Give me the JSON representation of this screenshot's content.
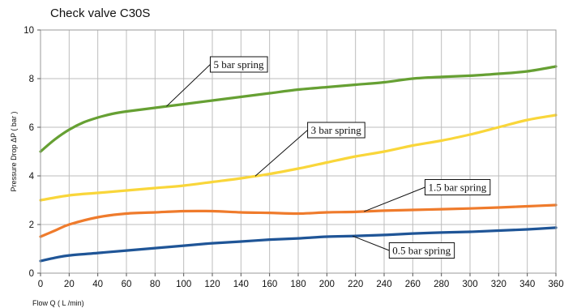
{
  "chart_data": {
    "type": "line",
    "title": "Check valve C30S",
    "xlabel": "Flow Q ( L /min)",
    "ylabel": "Pressure Drop ΔP ( bar )",
    "xlim": [
      0,
      360
    ],
    "ylim": [
      0,
      10
    ],
    "x_ticks": [
      0,
      20,
      40,
      60,
      80,
      100,
      120,
      140,
      160,
      180,
      200,
      220,
      240,
      260,
      280,
      300,
      320,
      340,
      360
    ],
    "y_ticks": [
      0,
      2,
      4,
      6,
      8,
      10
    ],
    "grid": true,
    "legend": "callouts",
    "series": [
      {
        "name": "5 bar spring",
        "color": "#66a033",
        "label_at": [
          118,
          8.6
        ],
        "anchor_x": 88,
        "points": [
          [
            0,
            5.0
          ],
          [
            10,
            5.5
          ],
          [
            20,
            5.9
          ],
          [
            30,
            6.2
          ],
          [
            40,
            6.4
          ],
          [
            50,
            6.55
          ],
          [
            60,
            6.65
          ],
          [
            80,
            6.8
          ],
          [
            100,
            6.95
          ],
          [
            120,
            7.1
          ],
          [
            140,
            7.25
          ],
          [
            160,
            7.4
          ],
          [
            180,
            7.55
          ],
          [
            200,
            7.65
          ],
          [
            220,
            7.75
          ],
          [
            240,
            7.85
          ],
          [
            260,
            8.0
          ],
          [
            280,
            8.07
          ],
          [
            300,
            8.12
          ],
          [
            320,
            8.2
          ],
          [
            340,
            8.3
          ],
          [
            360,
            8.5
          ]
        ]
      },
      {
        "name": "3 bar spring",
        "color": "#f9d63a",
        "label_at": [
          186,
          5.9
        ],
        "anchor_x": 150,
        "points": [
          [
            0,
            3.0
          ],
          [
            20,
            3.2
          ],
          [
            40,
            3.3
          ],
          [
            60,
            3.4
          ],
          [
            80,
            3.5
          ],
          [
            100,
            3.6
          ],
          [
            120,
            3.75
          ],
          [
            140,
            3.9
          ],
          [
            160,
            4.08
          ],
          [
            180,
            4.3
          ],
          [
            200,
            4.55
          ],
          [
            220,
            4.8
          ],
          [
            240,
            5.0
          ],
          [
            260,
            5.25
          ],
          [
            280,
            5.45
          ],
          [
            300,
            5.7
          ],
          [
            320,
            6.0
          ],
          [
            340,
            6.3
          ],
          [
            360,
            6.5
          ]
        ]
      },
      {
        "name": "1.5 bar spring",
        "color": "#ef7b2c",
        "label_at": [
          268,
          3.55
        ],
        "anchor_x": 226,
        "points": [
          [
            0,
            1.5
          ],
          [
            10,
            1.75
          ],
          [
            20,
            2.0
          ],
          [
            40,
            2.3
          ],
          [
            60,
            2.45
          ],
          [
            80,
            2.5
          ],
          [
            100,
            2.55
          ],
          [
            120,
            2.55
          ],
          [
            140,
            2.5
          ],
          [
            160,
            2.48
          ],
          [
            180,
            2.45
          ],
          [
            200,
            2.5
          ],
          [
            220,
            2.52
          ],
          [
            240,
            2.57
          ],
          [
            260,
            2.6
          ],
          [
            280,
            2.63
          ],
          [
            300,
            2.66
          ],
          [
            320,
            2.7
          ],
          [
            340,
            2.75
          ],
          [
            360,
            2.8
          ]
        ]
      },
      {
        "name": "0.5 bar spring",
        "color": "#1f5597",
        "label_at": [
          243,
          0.95
        ],
        "anchor_x": 218,
        "points": [
          [
            0,
            0.5
          ],
          [
            10,
            0.63
          ],
          [
            20,
            0.73
          ],
          [
            40,
            0.83
          ],
          [
            60,
            0.93
          ],
          [
            80,
            1.03
          ],
          [
            100,
            1.13
          ],
          [
            120,
            1.23
          ],
          [
            140,
            1.3
          ],
          [
            160,
            1.38
          ],
          [
            180,
            1.43
          ],
          [
            200,
            1.5
          ],
          [
            220,
            1.53
          ],
          [
            240,
            1.57
          ],
          [
            260,
            1.63
          ],
          [
            280,
            1.67
          ],
          [
            300,
            1.7
          ],
          [
            320,
            1.75
          ],
          [
            340,
            1.8
          ],
          [
            360,
            1.87
          ]
        ]
      }
    ]
  }
}
